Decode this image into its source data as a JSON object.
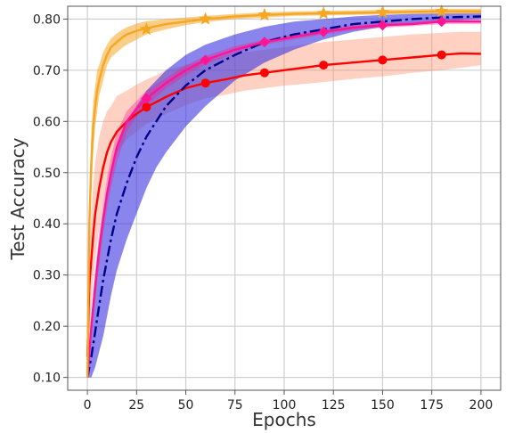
{
  "chart_data": {
    "type": "line",
    "title": "",
    "xlabel": "Epochs",
    "ylabel": "Test Accuracy",
    "xlim": [
      -10,
      210
    ],
    "ylim": [
      0.075,
      0.825
    ],
    "xticks": [
      0,
      25,
      50,
      75,
      100,
      125,
      150,
      175,
      200
    ],
    "yticks": [
      0.1,
      0.2,
      0.3,
      0.4,
      0.5,
      0.6,
      0.7,
      0.8
    ],
    "xtick_labels": [
      "0",
      "25",
      "50",
      "75",
      "100",
      "125",
      "150",
      "175",
      "200"
    ],
    "ytick_labels": [
      "0.10",
      "0.20",
      "0.30",
      "0.40",
      "0.50",
      "0.60",
      "0.70",
      "0.80"
    ],
    "grid": true,
    "legend": "none",
    "series": [
      {
        "color": "#f5a623",
        "band_color": "#f5a623",
        "linestyle": "solid",
        "marker": "star",
        "x": [
          0,
          1,
          2,
          3,
          4,
          5,
          6,
          8,
          10,
          12,
          15,
          18,
          20,
          25,
          30,
          40,
          50,
          60,
          75,
          90,
          105,
          120,
          135,
          150,
          165,
          180,
          200
        ],
        "y": [
          0.1,
          0.4,
          0.52,
          0.59,
          0.63,
          0.66,
          0.68,
          0.71,
          0.73,
          0.745,
          0.755,
          0.765,
          0.77,
          0.777,
          0.782,
          0.79,
          0.795,
          0.8,
          0.805,
          0.808,
          0.81,
          0.811,
          0.812,
          0.813,
          0.814,
          0.815,
          0.815
        ],
        "lower": [
          0.1,
          0.34,
          0.46,
          0.54,
          0.59,
          0.62,
          0.65,
          0.68,
          0.71,
          0.725,
          0.735,
          0.745,
          0.75,
          0.76,
          0.77,
          0.78,
          0.788,
          0.794,
          0.8,
          0.803,
          0.806,
          0.807,
          0.808,
          0.809,
          0.81,
          0.81,
          0.81
        ],
        "upper": [
          0.1,
          0.45,
          0.58,
          0.64,
          0.67,
          0.7,
          0.71,
          0.735,
          0.75,
          0.762,
          0.772,
          0.78,
          0.784,
          0.791,
          0.796,
          0.8,
          0.803,
          0.806,
          0.81,
          0.813,
          0.815,
          0.816,
          0.817,
          0.818,
          0.819,
          0.82,
          0.82
        ],
        "marker_x": [
          30,
          60,
          90,
          120,
          150,
          180
        ],
        "marker_y": [
          0.78,
          0.8,
          0.808,
          0.811,
          0.813,
          0.815
        ]
      },
      {
        "color": "#ff1493",
        "band_color": "#ff1493",
        "linestyle": "solid",
        "marker": "diamond",
        "x": [
          0,
          2,
          4,
          6,
          8,
          10,
          12,
          15,
          20,
          25,
          30,
          40,
          50,
          60,
          75,
          90,
          105,
          120,
          135,
          150,
          165,
          180,
          200
        ],
        "y": [
          0.1,
          0.2,
          0.28,
          0.35,
          0.41,
          0.46,
          0.5,
          0.55,
          0.6,
          0.625,
          0.645,
          0.675,
          0.7,
          0.72,
          0.74,
          0.755,
          0.765,
          0.775,
          0.783,
          0.788,
          0.79,
          0.795,
          0.795
        ],
        "lower": [
          0.1,
          0.18,
          0.25,
          0.32,
          0.38,
          0.43,
          0.47,
          0.52,
          0.58,
          0.61,
          0.63,
          0.665,
          0.69,
          0.712,
          0.733,
          0.75,
          0.76,
          0.77,
          0.778,
          0.783,
          0.786,
          0.79,
          0.79
        ],
        "upper": [
          0.1,
          0.22,
          0.31,
          0.38,
          0.44,
          0.49,
          0.53,
          0.58,
          0.62,
          0.64,
          0.66,
          0.685,
          0.71,
          0.728,
          0.747,
          0.76,
          0.77,
          0.78,
          0.788,
          0.793,
          0.795,
          0.8,
          0.8
        ],
        "marker_x": [
          30,
          60,
          90,
          120,
          150,
          180
        ],
        "marker_y": [
          0.645,
          0.72,
          0.755,
          0.775,
          0.788,
          0.795
        ]
      },
      {
        "color": "#ff0000",
        "band_color": "#ff8c69",
        "linestyle": "solid",
        "marker": "circle",
        "x": [
          0,
          1,
          2,
          3,
          4,
          6,
          8,
          10,
          12,
          15,
          20,
          25,
          30,
          35,
          40,
          50,
          60,
          70,
          80,
          90,
          100,
          110,
          120,
          135,
          150,
          165,
          180,
          190,
          200
        ],
        "y": [
          0.14,
          0.28,
          0.33,
          0.38,
          0.42,
          0.47,
          0.51,
          0.54,
          0.56,
          0.58,
          0.6,
          0.615,
          0.628,
          0.638,
          0.648,
          0.665,
          0.675,
          0.682,
          0.69,
          0.695,
          0.7,
          0.705,
          0.71,
          0.715,
          0.72,
          0.725,
          0.73,
          0.733,
          0.732
        ],
        "lower": [
          0.1,
          0.18,
          0.24,
          0.29,
          0.33,
          0.39,
          0.44,
          0.48,
          0.51,
          0.54,
          0.565,
          0.58,
          0.595,
          0.605,
          0.615,
          0.632,
          0.645,
          0.652,
          0.66,
          0.665,
          0.67,
          0.673,
          0.677,
          0.683,
          0.688,
          0.695,
          0.7,
          0.705,
          0.71
        ],
        "upper": [
          0.18,
          0.34,
          0.42,
          0.48,
          0.52,
          0.57,
          0.6,
          0.62,
          0.63,
          0.65,
          0.66,
          0.672,
          0.682,
          0.69,
          0.7,
          0.71,
          0.72,
          0.728,
          0.735,
          0.74,
          0.745,
          0.75,
          0.755,
          0.76,
          0.765,
          0.77,
          0.773,
          0.775,
          0.775
        ],
        "marker_x": [
          30,
          60,
          90,
          120,
          150,
          180
        ],
        "marker_y": [
          0.628,
          0.675,
          0.695,
          0.71,
          0.72,
          0.73
        ]
      },
      {
        "color": "#00008b",
        "band_color": "#3a34e0",
        "linestyle": "dashdot",
        "marker": "none",
        "x": [
          0,
          2,
          4,
          6,
          8,
          10,
          12,
          15,
          20,
          25,
          30,
          35,
          40,
          50,
          60,
          75,
          90,
          105,
          120,
          135,
          150,
          165,
          180,
          200
        ],
        "y": [
          0.1,
          0.14,
          0.19,
          0.24,
          0.29,
          0.33,
          0.37,
          0.42,
          0.48,
          0.53,
          0.57,
          0.6,
          0.63,
          0.67,
          0.7,
          0.73,
          0.755,
          0.77,
          0.78,
          0.79,
          0.795,
          0.8,
          0.803,
          0.805
        ],
        "lower": [
          0.1,
          0.1,
          0.12,
          0.15,
          0.18,
          0.22,
          0.26,
          0.31,
          0.37,
          0.42,
          0.47,
          0.51,
          0.54,
          0.59,
          0.63,
          0.68,
          0.715,
          0.74,
          0.76,
          0.775,
          0.785,
          0.79,
          0.795,
          0.8
        ],
        "upper": [
          0.1,
          0.2,
          0.28,
          0.35,
          0.41,
          0.46,
          0.5,
          0.55,
          0.6,
          0.63,
          0.66,
          0.68,
          0.7,
          0.73,
          0.75,
          0.77,
          0.785,
          0.795,
          0.8,
          0.805,
          0.808,
          0.81,
          0.811,
          0.812
        ],
        "marker_x": [],
        "marker_y": []
      }
    ]
  }
}
